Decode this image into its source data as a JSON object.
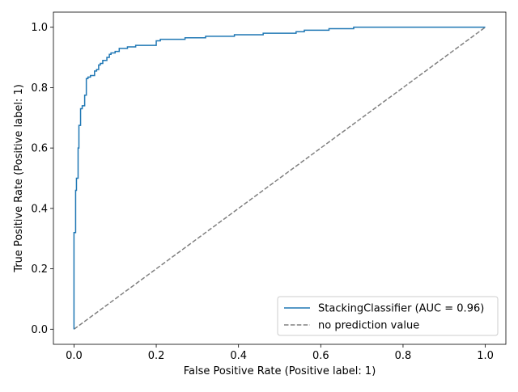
{
  "chart_data": {
    "type": "line",
    "xlabel": "False Positive Rate (Positive label: 1)",
    "ylabel": "True Positive Rate (Positive label: 1)",
    "xlim": [
      -0.05,
      1.05
    ],
    "ylim": [
      -0.05,
      1.05
    ],
    "x_ticks": [
      0.0,
      0.2,
      0.4,
      0.6,
      0.8,
      1.0
    ],
    "y_ticks": [
      0.0,
      0.2,
      0.4,
      0.6,
      0.8,
      1.0
    ],
    "x_tick_labels": [
      "0.0",
      "0.2",
      "0.4",
      "0.6",
      "0.8",
      "1.0"
    ],
    "y_tick_labels": [
      "0.0",
      "0.2",
      "0.4",
      "0.6",
      "0.8",
      "1.0"
    ],
    "grid": false,
    "legend_position": "lower-right",
    "series": [
      {
        "name": "StackingClassifier (AUC = 0.96)",
        "color": "#1f77b4",
        "line_style": "solid",
        "step": true,
        "x": [
          0.0,
          0.0,
          0.004,
          0.004,
          0.006,
          0.006,
          0.01,
          0.01,
          0.012,
          0.012,
          0.016,
          0.016,
          0.02,
          0.02,
          0.026,
          0.026,
          0.03,
          0.03,
          0.034,
          0.034,
          0.04,
          0.04,
          0.05,
          0.05,
          0.055,
          0.055,
          0.06,
          0.06,
          0.064,
          0.064,
          0.07,
          0.07,
          0.08,
          0.08,
          0.086,
          0.086,
          0.09,
          0.09,
          0.1,
          0.1,
          0.11,
          0.11,
          0.13,
          0.13,
          0.15,
          0.15,
          0.17,
          0.17,
          0.2,
          0.2,
          0.21,
          0.21,
          0.27,
          0.27,
          0.32,
          0.32,
          0.34,
          0.34,
          0.39,
          0.39,
          0.46,
          0.46,
          0.54,
          0.54,
          0.56,
          0.56,
          0.62,
          0.62,
          0.68,
          0.68,
          0.8,
          0.8,
          1.0
        ],
        "y": [
          0.0,
          0.32,
          0.32,
          0.46,
          0.46,
          0.5,
          0.5,
          0.6,
          0.6,
          0.675,
          0.675,
          0.73,
          0.73,
          0.74,
          0.74,
          0.775,
          0.775,
          0.83,
          0.83,
          0.835,
          0.835,
          0.84,
          0.84,
          0.855,
          0.855,
          0.86,
          0.86,
          0.875,
          0.875,
          0.88,
          0.88,
          0.89,
          0.89,
          0.9,
          0.9,
          0.91,
          0.91,
          0.915,
          0.915,
          0.92,
          0.92,
          0.93,
          0.93,
          0.935,
          0.935,
          0.94,
          0.94,
          0.94,
          0.94,
          0.955,
          0.955,
          0.96,
          0.96,
          0.965,
          0.965,
          0.97,
          0.97,
          0.97,
          0.97,
          0.975,
          0.975,
          0.98,
          0.98,
          0.985,
          0.985,
          0.99,
          0.99,
          0.995,
          0.995,
          1.0,
          1.0,
          1.0,
          1.0
        ]
      },
      {
        "name": "no prediction value",
        "color": "#808080",
        "line_style": "dashed",
        "step": false,
        "x": [
          0.0,
          1.0
        ],
        "y": [
          0.0,
          1.0
        ]
      }
    ]
  }
}
